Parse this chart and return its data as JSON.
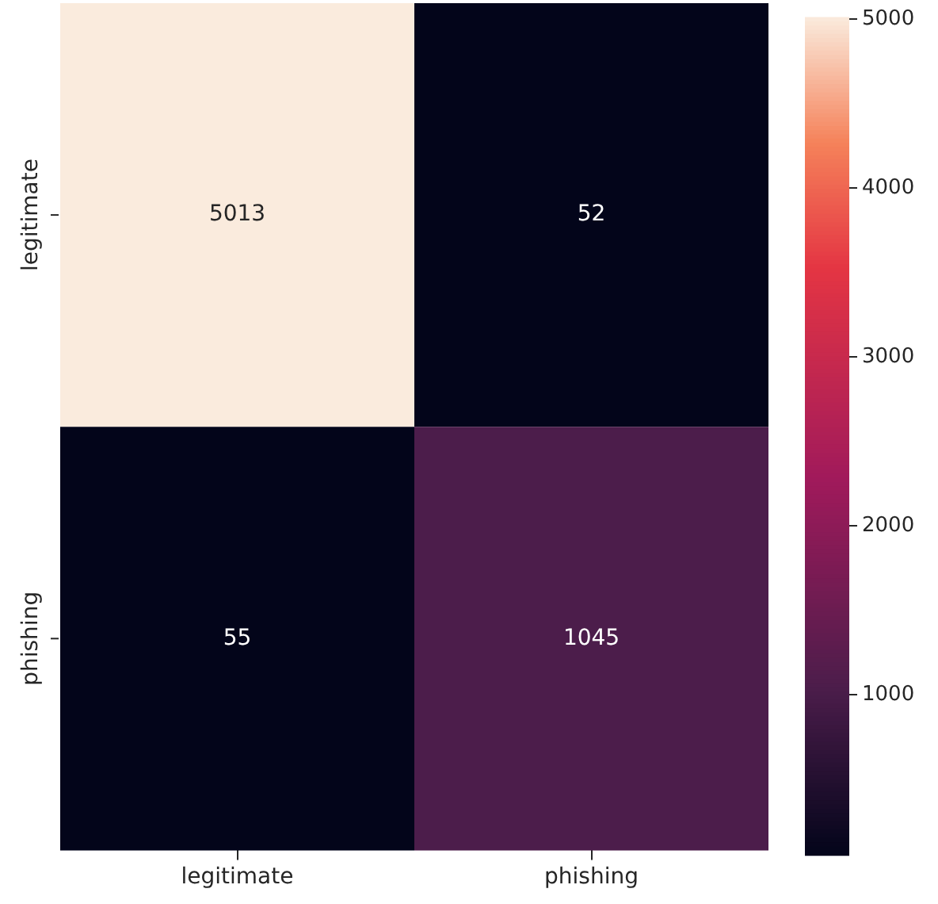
{
  "chart_data": {
    "type": "heatmap",
    "categories": [
      "legitimate",
      "phishing"
    ],
    "y_categories": [
      "legitimate",
      "phishing"
    ],
    "cells": [
      [
        5013,
        52
      ],
      [
        55,
        1045
      ]
    ],
    "data_labels": true,
    "clim": [
      52,
      5013
    ],
    "cticks": [
      1000,
      2000,
      3000,
      4000,
      5000
    ]
  }
}
